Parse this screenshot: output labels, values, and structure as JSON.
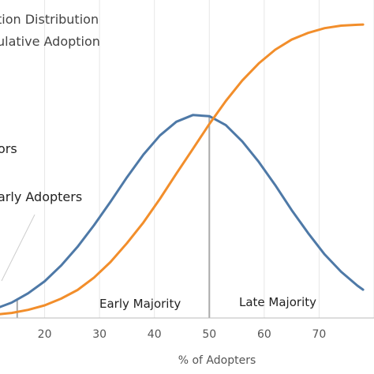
{
  "chart_data": {
    "type": "line",
    "title": "",
    "legend_items": [
      "tion Distribution",
      "ulative Adoption"
    ],
    "xlabel": "% of Adopters",
    "x_ticks": [
      "20",
      "30",
      "40",
      "50",
      "60",
      "70"
    ],
    "xlim": [
      11,
      78
    ],
    "ylim": [
      0,
      1.05
    ],
    "grid": "vertical",
    "series": [
      {
        "color": "#4e79a7",
        "x": [
          11,
          14,
          17,
          20,
          23,
          26,
          29,
          32,
          35,
          38,
          41,
          44,
          47,
          50,
          53,
          56,
          59,
          62,
          65,
          68,
          71,
          74,
          77,
          78
        ],
        "y": [
          0.033,
          0.055,
          0.088,
          0.131,
          0.187,
          0.254,
          0.331,
          0.415,
          0.502,
          0.583,
          0.651,
          0.7,
          0.724,
          0.72,
          0.688,
          0.63,
          0.557,
          0.474,
          0.385,
          0.303,
          0.227,
          0.165,
          0.115,
          0.101
        ]
      },
      {
        "color": "#f28e2b",
        "x": [
          11,
          14,
          17,
          20,
          23,
          26,
          29,
          32,
          35,
          38,
          41,
          44,
          47,
          50,
          53,
          56,
          59,
          62,
          65,
          68,
          71,
          74,
          77,
          78
        ],
        "y": [
          0.012,
          0.018,
          0.029,
          0.045,
          0.069,
          0.1,
          0.144,
          0.2,
          0.267,
          0.341,
          0.425,
          0.515,
          0.603,
          0.692,
          0.774,
          0.847,
          0.908,
          0.957,
          0.993,
          1.017,
          1.034,
          1.043,
          1.046,
          1.047
        ]
      }
    ],
    "markers": [
      15,
      50
    ],
    "annotations": [
      {
        "text": "ors"
      },
      {
        "text": "arly Adopters"
      },
      {
        "text": "Early Majority"
      },
      {
        "text": "Late Majority"
      }
    ]
  }
}
